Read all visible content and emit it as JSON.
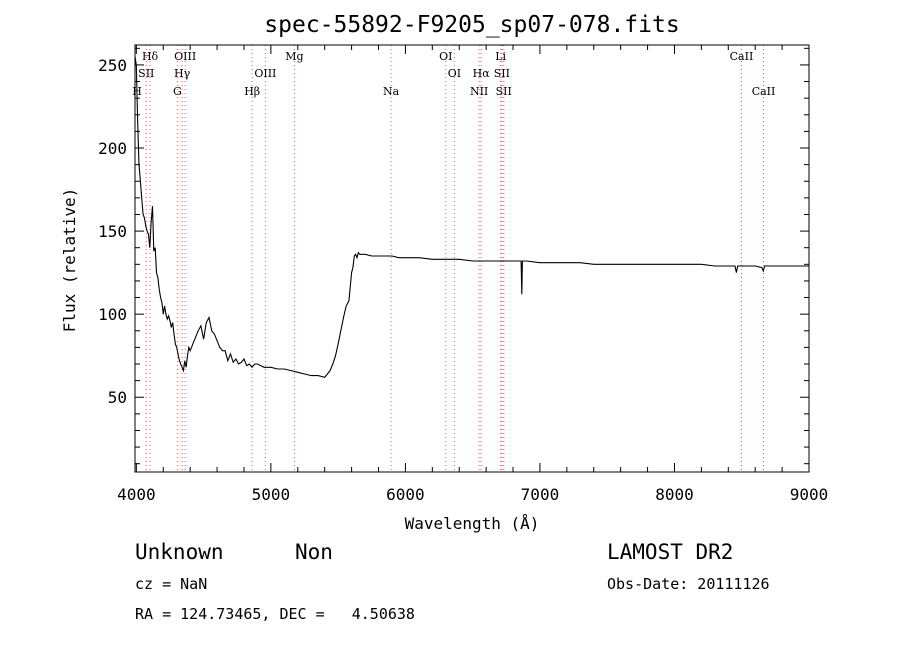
{
  "chart_data": {
    "type": "line",
    "title": "spec-55892-F9205_sp07-078.fits",
    "xlabel": "Wavelength (Å)",
    "ylabel": "Flux (relative)",
    "xlim": [
      3990,
      9000
    ],
    "ylim": [
      5,
      262
    ],
    "xticks": [
      4000,
      5000,
      6000,
      7000,
      8000,
      9000
    ],
    "yticks": [
      50,
      100,
      150,
      200,
      250
    ],
    "grid": false,
    "series": [
      {
        "x": [
          3990,
          4000,
          4010,
          4020,
          4030,
          4040,
          4050,
          4060,
          4070,
          4080,
          4090,
          4100,
          4110,
          4120,
          4130,
          4140,
          4150,
          4160,
          4170,
          4180,
          4190,
          4200,
          4210,
          4220,
          4230,
          4240,
          4250,
          4260,
          4270,
          4280,
          4290,
          4300,
          4310,
          4320,
          4330,
          4340,
          4350,
          4360,
          4370,
          4380,
          4390,
          4400,
          4420,
          4440,
          4460,
          4480,
          4500,
          4520,
          4540,
          4560,
          4580,
          4600,
          4620,
          4640,
          4660,
          4680,
          4700,
          4720,
          4740,
          4760,
          4780,
          4800,
          4820,
          4840,
          4860,
          4880,
          4900,
          4950,
          5000,
          5050,
          5100,
          5150,
          5200,
          5250,
          5300,
          5350,
          5400,
          5420,
          5440,
          5460,
          5480,
          5500,
          5520,
          5540,
          5560,
          5580,
          5600,
          5610,
          5620,
          5630,
          5640,
          5650,
          5660,
          5700,
          5750,
          5800,
          5850,
          5900,
          5950,
          6000,
          6100,
          6200,
          6300,
          6400,
          6500,
          6600,
          6700,
          6800,
          6850,
          6860,
          6865,
          6870,
          6875,
          6880,
          6900,
          7000,
          7100,
          7200,
          7300,
          7400,
          7500,
          7600,
          7700,
          7800,
          7900,
          8000,
          8100,
          8200,
          8300,
          8400,
          8450,
          8460,
          8470,
          8500,
          8600,
          8650,
          8660,
          8670,
          8700,
          8800,
          8900,
          8950,
          9000
        ],
        "y": [
          255,
          250,
          215,
          190,
          180,
          170,
          160,
          158,
          153,
          150,
          148,
          140,
          155,
          165,
          138,
          140,
          125,
          122,
          115,
          110,
          107,
          100,
          105,
          100,
          97,
          99,
          96,
          92,
          95,
          88,
          82,
          80,
          76,
          72,
          70,
          68,
          66,
          72,
          68,
          75,
          80,
          78,
          82,
          86,
          90,
          93,
          85,
          95,
          98,
          90,
          88,
          84,
          80,
          78,
          78,
          72,
          76,
          71,
          73,
          70,
          71,
          73,
          69,
          70,
          68,
          70,
          70,
          68,
          68,
          67,
          67,
          66,
          65,
          64,
          63,
          63,
          62,
          64,
          66,
          70,
          75,
          82,
          90,
          98,
          105,
          108,
          125,
          128,
          135,
          136,
          134,
          137,
          136,
          136,
          135,
          135,
          135,
          135,
          134,
          134,
          134,
          133,
          133,
          133,
          132,
          132,
          132,
          132,
          132,
          132,
          112,
          132,
          132,
          132,
          132,
          131,
          131,
          131,
          131,
          130,
          130,
          130,
          130,
          130,
          130,
          130,
          130,
          130,
          129,
          129,
          129,
          125,
          129,
          129,
          129,
          128,
          126,
          129,
          129,
          129,
          129,
          129,
          129
        ]
      }
    ],
    "lines": [
      {
        "name": "Hδ",
        "x": 4102
      },
      {
        "name": "SII",
        "x": 4074
      },
      {
        "name": "H",
        "x": 3970
      },
      {
        "name": "OIII",
        "x": 4363
      },
      {
        "name": "Hγ",
        "x": 4340
      },
      {
        "name": "G",
        "x": 4305
      },
      {
        "name": "Hβ",
        "x": 4861
      },
      {
        "name": "OIII",
        "x": 4959
      },
      {
        "name": "Mg",
        "x": 5175
      },
      {
        "name": "Na",
        "x": 5894
      },
      {
        "name": "OI",
        "x": 6300
      },
      {
        "name": "OI",
        "x": 6364
      },
      {
        "name": "Hα",
        "x": 6563
      },
      {
        "name": "NII",
        "x": 6548
      },
      {
        "name": "Li",
        "x": 6708
      },
      {
        "name": "SII",
        "x": 6717
      },
      {
        "name": "SII",
        "x": 6731
      },
      {
        "name": "CaII",
        "x": 8498
      },
      {
        "name": "CaII",
        "x": 8662
      }
    ]
  },
  "info": {
    "class": "Unknown",
    "subclass": "Non",
    "survey": "LAMOST DR2",
    "cz": "cz = NaN",
    "obs_date": "Obs-Date: 20111126",
    "coords": "RA = 124.73465, DEC =   4.50638"
  }
}
